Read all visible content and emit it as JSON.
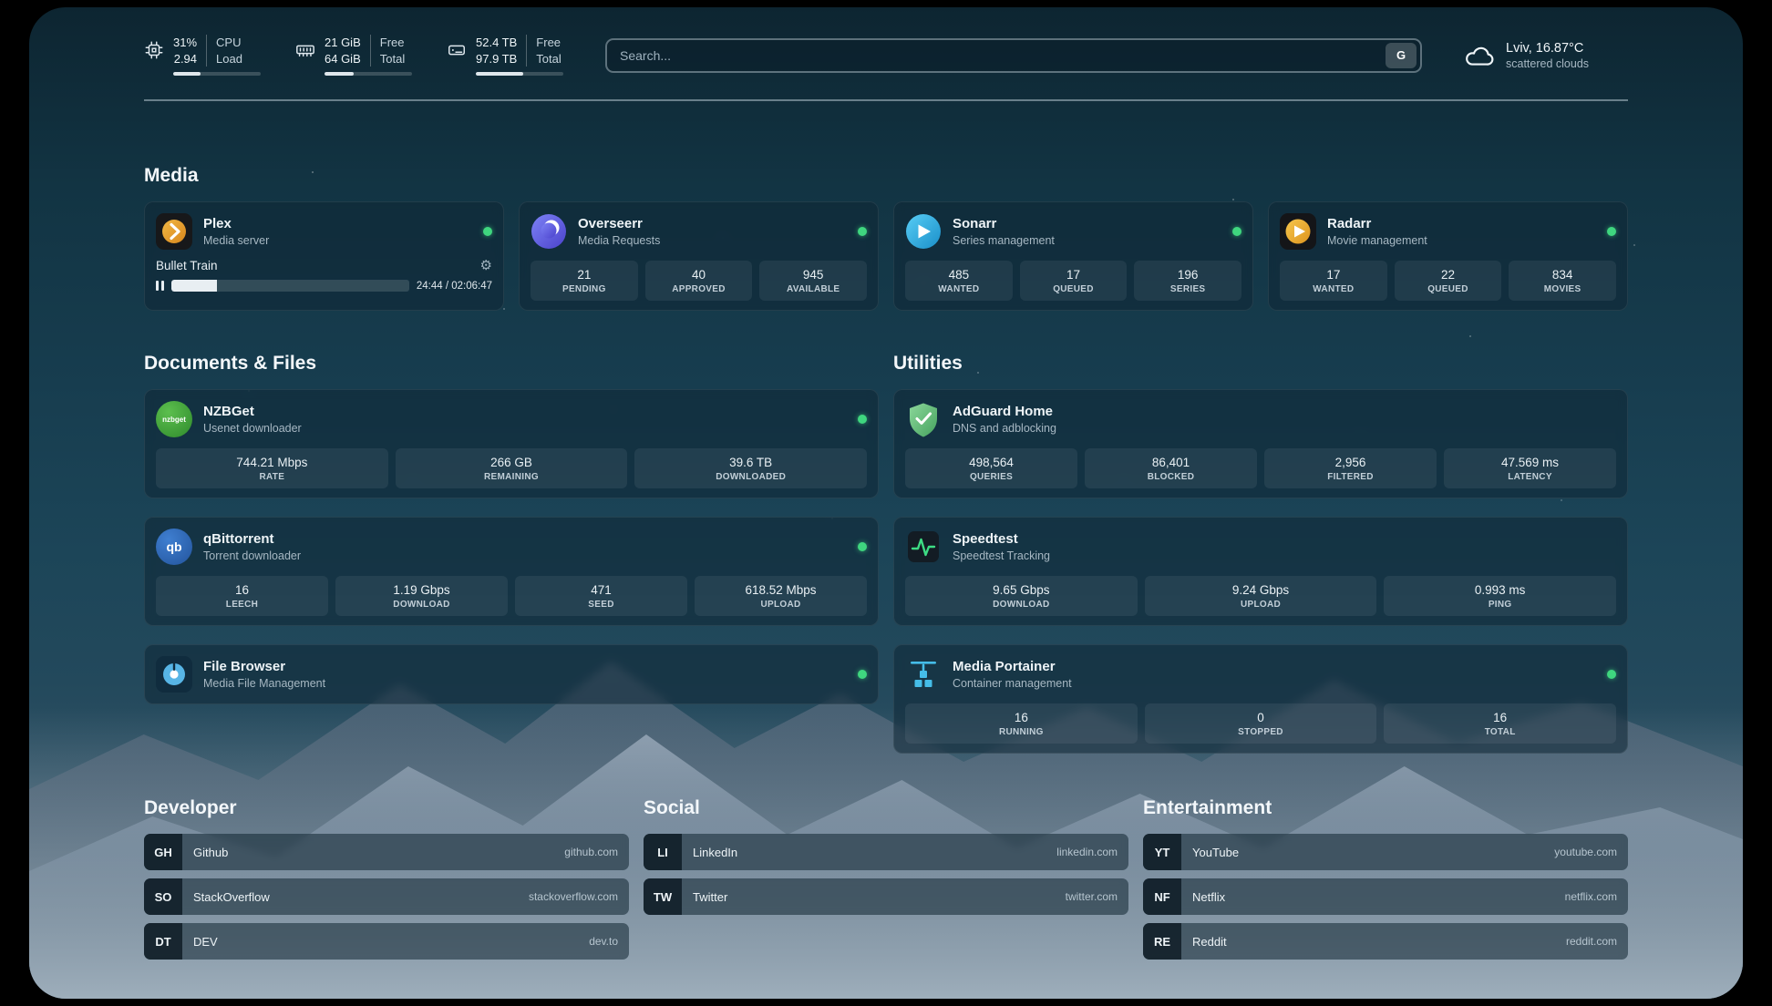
{
  "topbar": {
    "cpu": {
      "value_top": "31%",
      "value_bottom": "2.94",
      "label_top": "CPU",
      "label_bottom": "Load",
      "percent": 31
    },
    "memory": {
      "value_top": "21 GiB",
      "value_bottom": "64 GiB",
      "label_top": "Free",
      "label_bottom": "Total",
      "percent": 33
    },
    "disk": {
      "value_top": "52.4 TB",
      "value_bottom": "97.9 TB",
      "label_top": "Free",
      "label_bottom": "Total",
      "percent": 54
    },
    "search": {
      "placeholder": "Search...",
      "provider_label": "G"
    },
    "weather": {
      "location": "Lviv, 16.87°C",
      "condition": "scattered clouds"
    }
  },
  "sections": {
    "media": {
      "title": "Media"
    },
    "documents": {
      "title": "Documents & Files"
    },
    "utilities": {
      "title": "Utilities"
    },
    "developer": {
      "title": "Developer"
    },
    "social": {
      "title": "Social"
    },
    "entertainment": {
      "title": "Entertainment"
    }
  },
  "plex": {
    "name": "Plex",
    "subtitle": "Media server",
    "now_playing": "Bullet Train",
    "elapsed_total": "24:44 / 02:06:47",
    "progress_percent": 19
  },
  "overseerr": {
    "name": "Overseerr",
    "subtitle": "Media Requests",
    "stats": [
      {
        "value": "21",
        "label": "PENDING"
      },
      {
        "value": "40",
        "label": "APPROVED"
      },
      {
        "value": "945",
        "label": "AVAILABLE"
      }
    ]
  },
  "sonarr": {
    "name": "Sonarr",
    "subtitle": "Series management",
    "stats": [
      {
        "value": "485",
        "label": "WANTED"
      },
      {
        "value": "17",
        "label": "QUEUED"
      },
      {
        "value": "196",
        "label": "SERIES"
      }
    ]
  },
  "radarr": {
    "name": "Radarr",
    "subtitle": "Movie management",
    "stats": [
      {
        "value": "17",
        "label": "WANTED"
      },
      {
        "value": "22",
        "label": "QUEUED"
      },
      {
        "value": "834",
        "label": "MOVIES"
      }
    ]
  },
  "nzbget": {
    "name": "NZBGet",
    "subtitle": "Usenet downloader",
    "icon_text": "nzbget",
    "stats": [
      {
        "value": "744.21 Mbps",
        "label": "RATE"
      },
      {
        "value": "266 GB",
        "label": "REMAINING"
      },
      {
        "value": "39.6 TB",
        "label": "DOWNLOADED"
      }
    ]
  },
  "qbittorrent": {
    "name": "qBittorrent",
    "subtitle": "Torrent downloader",
    "icon_text": "qb",
    "stats": [
      {
        "value": "16",
        "label": "LEECH"
      },
      {
        "value": "1.19 Gbps",
        "label": "DOWNLOAD"
      },
      {
        "value": "471",
        "label": "SEED"
      },
      {
        "value": "618.52 Mbps",
        "label": "UPLOAD"
      }
    ]
  },
  "filebrowser": {
    "name": "File Browser",
    "subtitle": "Media File Management"
  },
  "adguard": {
    "name": "AdGuard Home",
    "subtitle": "DNS and adblocking",
    "stats": [
      {
        "value": "498,564",
        "label": "QUERIES"
      },
      {
        "value": "86,401",
        "label": "BLOCKED"
      },
      {
        "value": "2,956",
        "label": "FILTERED"
      },
      {
        "value": "47.569 ms",
        "label": "LATENCY"
      }
    ]
  },
  "speedtest": {
    "name": "Speedtest",
    "subtitle": "Speedtest Tracking",
    "stats": [
      {
        "value": "9.65 Gbps",
        "label": "DOWNLOAD"
      },
      {
        "value": "9.24 Gbps",
        "label": "UPLOAD"
      },
      {
        "value": "0.993 ms",
        "label": "PING"
      }
    ]
  },
  "portainer": {
    "name": "Media Portainer",
    "subtitle": "Container management",
    "stats": [
      {
        "value": "16",
        "label": "RUNNING"
      },
      {
        "value": "0",
        "label": "STOPPED"
      },
      {
        "value": "16",
        "label": "TOTAL"
      }
    ]
  },
  "bookmarks": {
    "developer": [
      {
        "abbr": "GH",
        "name": "Github",
        "domain": "github.com"
      },
      {
        "abbr": "SO",
        "name": "StackOverflow",
        "domain": "stackoverflow.com"
      },
      {
        "abbr": "DT",
        "name": "DEV",
        "domain": "dev.to"
      }
    ],
    "social": [
      {
        "abbr": "LI",
        "name": "LinkedIn",
        "domain": "linkedin.com"
      },
      {
        "abbr": "TW",
        "name": "Twitter",
        "domain": "twitter.com"
      }
    ],
    "entertainment": [
      {
        "abbr": "YT",
        "name": "YouTube",
        "domain": "youtube.com"
      },
      {
        "abbr": "NF",
        "name": "Netflix",
        "domain": "netflix.com"
      },
      {
        "abbr": "RE",
        "name": "Reddit",
        "domain": "reddit.com"
      }
    ]
  },
  "colors": {
    "status_online": "#3fd67f",
    "background_top": "#0d2531",
    "fill_light": "#dfe7ec"
  }
}
